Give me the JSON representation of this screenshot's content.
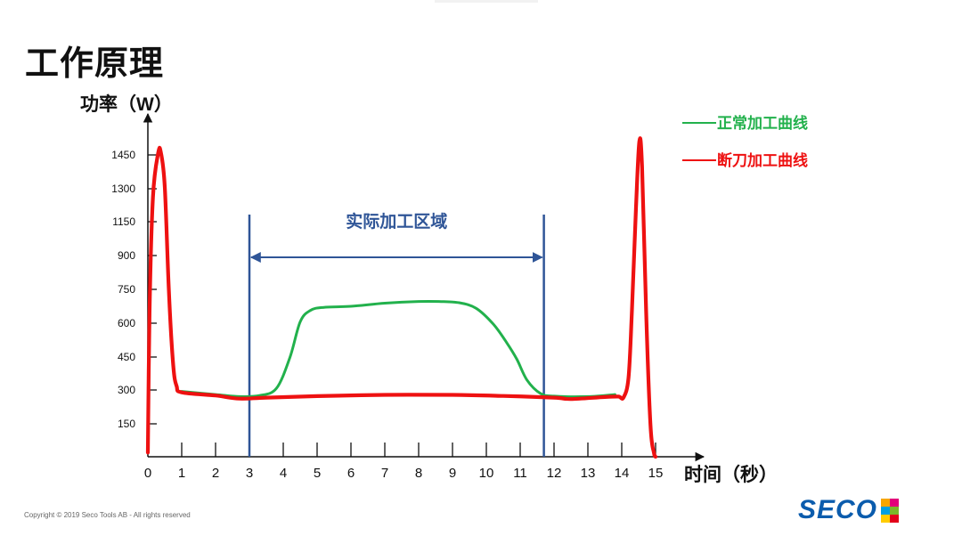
{
  "page": {
    "title": "工作原理",
    "copyright": "Copyright © 2019 Seco Tools AB - All rights reserved",
    "logo_text": "SECO",
    "logo_colors": [
      "#f7a600",
      "#e3007a",
      "#009fe3",
      "#7ab929",
      "#ffcc00",
      "#e2001a"
    ]
  },
  "chart_data": {
    "type": "line",
    "ylabel": "功率（W）",
    "xlabel": "时间（秒）",
    "xlim": [
      0,
      15.4
    ],
    "ylim": [
      0,
      1550
    ],
    "x_ticks": [
      0,
      1,
      2,
      3,
      4,
      5,
      6,
      7,
      8,
      9,
      10,
      11,
      12,
      13,
      14,
      15
    ],
    "y_ticks": [
      150,
      300,
      450,
      600,
      750,
      900,
      1150,
      1300,
      1450
    ],
    "annotation": {
      "label": "实际加工区域",
      "x_start": 3,
      "x_end": 11.7,
      "color": "#2f5597"
    },
    "legend": {
      "position": "top-right",
      "entries": [
        {
          "label": "正常加工曲线",
          "color": "#22b14c"
        },
        {
          "label": "断刀加工曲线",
          "color": "#ee1111"
        }
      ]
    },
    "series": [
      {
        "name": "正常加工曲线",
        "color": "#22b14c",
        "points": [
          [
            1,
            315
          ],
          [
            2,
            300
          ],
          [
            2.7,
            290
          ],
          [
            3.3,
            295
          ],
          [
            3.8,
            330
          ],
          [
            4.2,
            480
          ],
          [
            4.5,
            650
          ],
          [
            4.8,
            705
          ],
          [
            5.2,
            720
          ],
          [
            6,
            725
          ],
          [
            7,
            740
          ],
          [
            8,
            748
          ],
          [
            8.6,
            748
          ],
          [
            9.2,
            742
          ],
          [
            9.7,
            715
          ],
          [
            10.2,
            640
          ],
          [
            10.6,
            550
          ],
          [
            10.9,
            470
          ],
          [
            11.2,
            370
          ],
          [
            11.6,
            305
          ],
          [
            12,
            292
          ],
          [
            13,
            290
          ],
          [
            13.8,
            300
          ]
        ]
      },
      {
        "name": "断刀加工曲线",
        "color": "#ee1111",
        "points": [
          [
            0,
            20
          ],
          [
            0.05,
            700
          ],
          [
            0.15,
            1250
          ],
          [
            0.3,
            1460
          ],
          [
            0.38,
            1470
          ],
          [
            0.5,
            1300
          ],
          [
            0.62,
            800
          ],
          [
            0.75,
            440
          ],
          [
            0.85,
            340
          ],
          [
            1,
            310
          ],
          [
            2,
            295
          ],
          [
            2.7,
            280
          ],
          [
            3.5,
            285
          ],
          [
            5,
            292
          ],
          [
            7,
            298
          ],
          [
            9,
            298
          ],
          [
            10.5,
            293
          ],
          [
            12,
            285
          ],
          [
            12.5,
            278
          ],
          [
            13.5,
            288
          ],
          [
            13.9,
            290
          ],
          [
            14.05,
            285
          ],
          [
            14.2,
            380
          ],
          [
            14.3,
            700
          ],
          [
            14.42,
            1200
          ],
          [
            14.52,
            1520
          ],
          [
            14.6,
            1400
          ],
          [
            14.72,
            700
          ],
          [
            14.85,
            150
          ],
          [
            14.95,
            20
          ],
          [
            15,
            0
          ]
        ]
      }
    ]
  }
}
